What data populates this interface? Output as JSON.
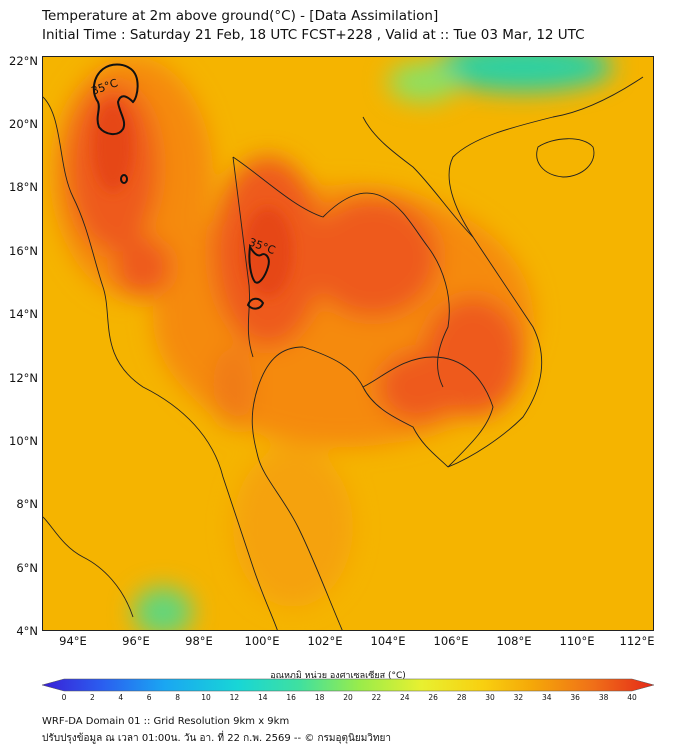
{
  "title": {
    "line1": "Temperature at 2m above ground(°C) - [Data Assimilation]",
    "line2": "Initial Time : Saturday 21 Feb, 18 UTC FCST+228 , Valid at :: Tue 03 Mar, 12 UTC"
  },
  "map": {
    "lat_labels": [
      "22°N",
      "20°N",
      "18°N",
      "16°N",
      "14°N",
      "12°N",
      "10°N",
      "8°N",
      "6°N",
      "4°N"
    ],
    "lon_labels": [
      "94°E",
      "96°E",
      "98°E",
      "100°E",
      "102°E",
      "104°E",
      "106°E",
      "108°E",
      "110°E",
      "112°E"
    ],
    "lat_range": [
      4,
      22.2
    ],
    "lon_range": [
      93,
      112.4
    ],
    "contour_level_label": "35°C",
    "colors": {
      "background": "#f5b400",
      "hot": "#ee5a1c",
      "very_hot": "#e64617",
      "warm": "#f58a10",
      "cool_green": "#64d67a",
      "teal": "#2ed0a0",
      "contour": "#111111",
      "borders": "#222222"
    }
  },
  "colorbar": {
    "label": "อุณหภูมิ หน่วย องศาเซลเซียส (°C)",
    "ticks": [
      "0",
      "2",
      "4",
      "6",
      "8",
      "10",
      "12",
      "14",
      "16",
      "18",
      "20",
      "22",
      "24",
      "26",
      "28",
      "30",
      "32",
      "34",
      "36",
      "38",
      "40"
    ],
    "range": [
      0,
      40
    ],
    "colors": [
      "#3a1fd6",
      "#2a5ff0",
      "#1aa6f2",
      "#18d6d6",
      "#3fe0a0",
      "#9aec4a",
      "#e8f030",
      "#f8d010",
      "#f5a808",
      "#f07018",
      "#e42818"
    ]
  },
  "footer": {
    "line1": "WRF-DA Domain 01 :: Grid Resolution 9km x 9km",
    "line2": "ปรับปรุงข้อมูล ณ เวลา 01:00น. วัน อา. ที่ 22 ก.พ. 2569 -- © กรมอุตุนิยมวิทยา"
  }
}
